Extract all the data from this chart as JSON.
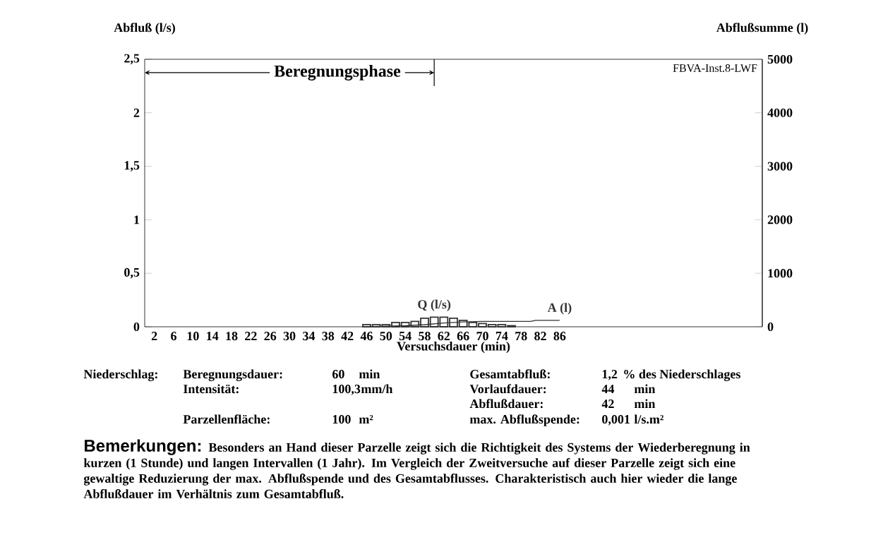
{
  "chart_data": {
    "type": "bar",
    "xlabel": "Versuchsdauer (min)",
    "ylabel": "Abfluß (l/s)",
    "y2label": "Abflußsumme (l)",
    "xlim": [
      0,
      128
    ],
    "xticks": [
      2,
      6,
      10,
      14,
      18,
      22,
      26,
      30,
      34,
      38,
      42,
      46,
      50,
      54,
      58,
      62,
      66,
      70,
      74,
      78,
      82,
      86
    ],
    "ylim": [
      0,
      2.5
    ],
    "yticks": [
      0,
      {
        "value": 0.5,
        "label": "0,5"
      },
      1,
      {
        "value": 1.5,
        "label": "1,5"
      },
      2,
      {
        "value": 2.5,
        "label": "2,5"
      }
    ],
    "y2lim": [
      0,
      5000
    ],
    "y2ticks": [
      0,
      1000,
      2000,
      3000,
      4000,
      5000
    ],
    "series": [
      {
        "name": "Q (l/s)",
        "color": "#333333",
        "x": [
          46,
          48,
          50,
          52,
          54,
          56,
          58,
          60,
          62,
          64,
          66,
          68,
          70,
          72,
          74,
          76
        ],
        "values": [
          0.02,
          0.02,
          0.02,
          0.04,
          0.04,
          0.05,
          0.08,
          0.09,
          0.09,
          0.08,
          0.06,
          0.04,
          0.03,
          0.02,
          0.02,
          0.01
        ]
      },
      {
        "name": "A (l)",
        "type": "line",
        "axis": "y2",
        "color": "#333333",
        "x": [
          46,
          50,
          54,
          58,
          62,
          66,
          70,
          72,
          80,
          81,
          86
        ],
        "values": [
          0,
          10,
          20,
          40,
          70,
          90,
          100,
          100,
          100,
          120,
          120
        ]
      }
    ],
    "ref_lines": [
      {
        "axis": "x",
        "value": 60,
        "label": "Beregnungsphase"
      }
    ],
    "annotations": [
      "Niederschlag:",
      "Beregnungsdauer:",
      "60",
      "min",
      "Gesamtabfluß:",
      "1,2",
      "% des Niederschlages",
      "Intensität:",
      "100,3",
      "mm/h",
      "Vorlaufdauer:",
      "44",
      "min",
      "Abflußdauer:",
      "42",
      "min",
      "Parzellenfläche:",
      "100",
      "m²",
      "max. Abflußspende:",
      "0,001",
      "l/s.m²",
      "Bemerkungen:",
      "Besonders an Hand dieser Parzelle zeigt sich die Richtigkeit des Systems der Wiederberegnung in kurzen (1 Stunde) und langen Intervallen (1 Jahr). Im Vergleich der Zweitversuche auf dieser Parzelle zeigt sich eine gewaltige Reduzierung der max. Abflußspende und des Gesamtabflusses. Charakteristisch auch hier wieder die lange Abflußdauer im Verhältnis zum Gesamtabfluß.",
      "FBVA-Inst.8-LWF"
    ]
  }
}
